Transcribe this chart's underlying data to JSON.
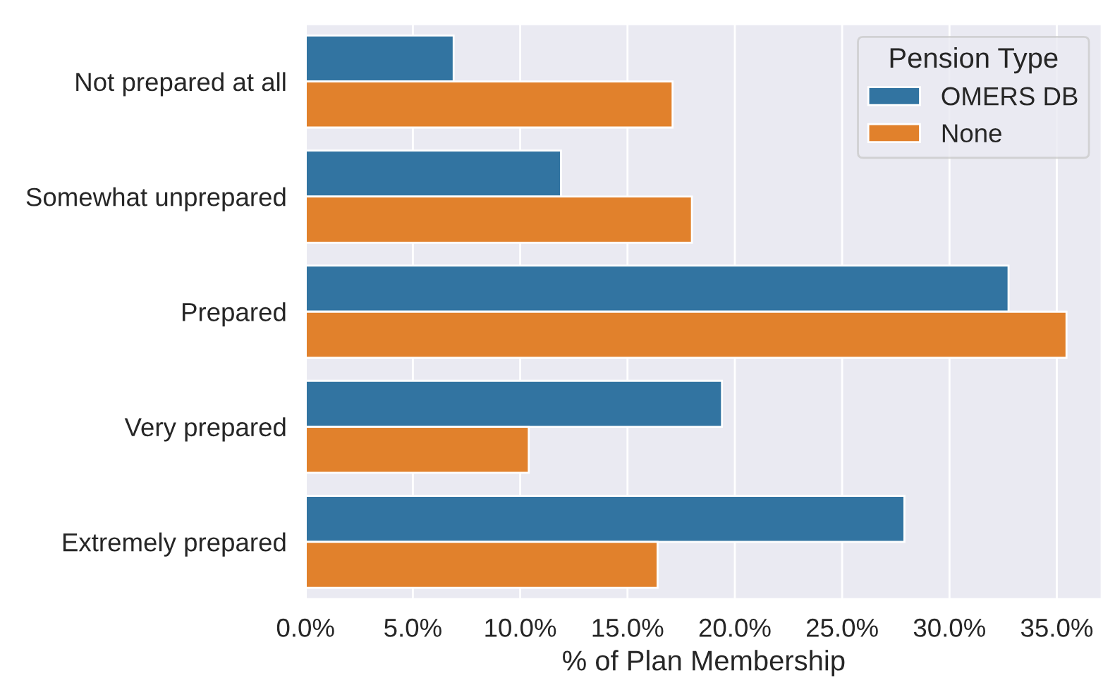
{
  "chart_data": {
    "type": "bar",
    "orientation": "horizontal",
    "xlabel": "% of Plan Membership",
    "legend_title": "Pension Type",
    "legend": "top right",
    "grid": "x",
    "categories": [
      "Not prepared at all",
      "Somewhat unprepared",
      "Prepared",
      "Very prepared",
      "Extremely prepared"
    ],
    "series": [
      {
        "name": "OMERS DB",
        "color": "#3274a1",
        "values": [
          6.9,
          11.9,
          32.75,
          19.4,
          27.9
        ]
      },
      {
        "name": "None",
        "color": "#e1812c",
        "values": [
          17.1,
          18.0,
          35.45,
          10.4,
          16.4
        ]
      }
    ],
    "xlim": [
      0,
      37.1
    ],
    "xticks": [
      {
        "value": 0,
        "label": "0.0%"
      },
      {
        "value": 5,
        "label": "5.0%"
      },
      {
        "value": 10,
        "label": "10.0%"
      },
      {
        "value": 15,
        "label": "15.0%"
      },
      {
        "value": 20,
        "label": "20.0%"
      },
      {
        "value": 25,
        "label": "25.0%"
      },
      {
        "value": 30,
        "label": "30.0%"
      },
      {
        "value": 35,
        "label": "35.0%"
      }
    ]
  }
}
